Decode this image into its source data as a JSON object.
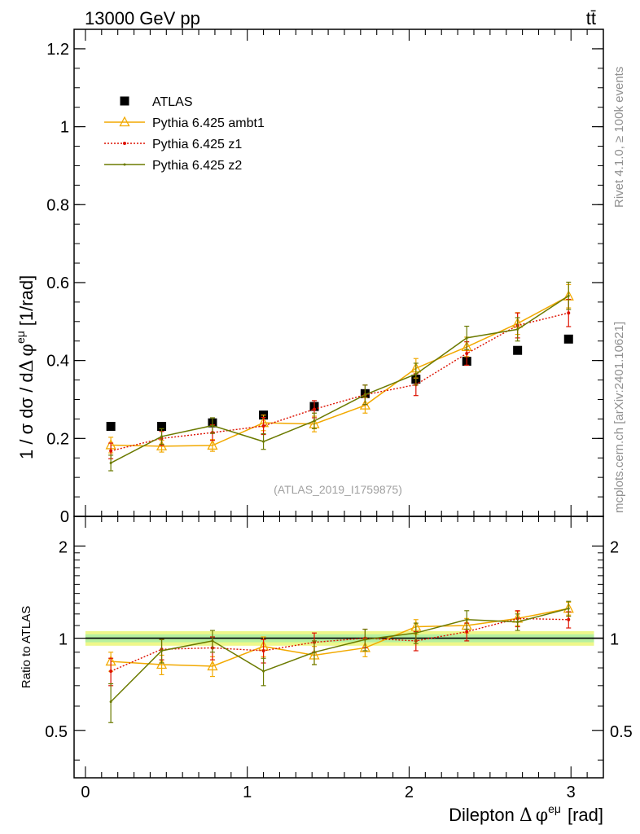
{
  "header": {
    "energy_label": "13000 GeV pp",
    "process_label": "tt̄",
    "ref_label": "(ATLAS_2019_I1759875)",
    "side_label_rivet": "Rivet 4.1.0, ≥ 100k events",
    "side_label_url": "mcplots.cern.ch [arXiv:2401.10621]"
  },
  "colors": {
    "atlas": "#000000",
    "ambt1": "#f2a900",
    "z1": "#dd1100",
    "z2": "#6b7a00",
    "band_outer": "#eef78a",
    "band_inner": "#b6f0a0",
    "ref_line": "#0a7a0a"
  },
  "chart_data": [
    {
      "type": "scatter",
      "panel": "main",
      "ylabel_parts": {
        "a": "1 / σ  dσ / d",
        "delta": "Δ",
        "phi": "φ",
        "sup": "eμ",
        "unit": "[1/rad]"
      },
      "ylim": [
        0,
        1.25
      ],
      "xlim": [
        -0.07,
        3.2
      ],
      "yticks": [
        {
          "v": 0,
          "label": "0"
        },
        {
          "v": 0.2,
          "label": "0.2"
        },
        {
          "v": 0.4,
          "label": "0.4"
        },
        {
          "v": 0.6,
          "label": "0.6"
        },
        {
          "v": 0.8,
          "label": "0.8"
        },
        {
          "v": 1.0,
          "label": "1"
        },
        {
          "v": 1.2,
          "label": "1.2"
        }
      ],
      "x": [
        0.157,
        0.471,
        0.785,
        1.1,
        1.414,
        1.728,
        2.042,
        2.356,
        2.67,
        2.985
      ],
      "legend": [
        {
          "key": "atlas",
          "label": "ATLAS"
        },
        {
          "key": "ambt1",
          "label": "Pythia 6.425 ambt1"
        },
        {
          "key": "z1",
          "label": "Pythia 6.425 z1"
        },
        {
          "key": "z2",
          "label": "Pythia 6.425 z2"
        }
      ],
      "series": [
        {
          "key": "atlas",
          "name": "ATLAS",
          "style": "square",
          "values": [
            0.231,
            0.231,
            0.24,
            0.26,
            0.282,
            0.315,
            0.352,
            0.398,
            0.426,
            0.455
          ]
        },
        {
          "key": "ambt1",
          "name": "Pythia 6.425 ambt1",
          "style": "triangle",
          "values": [
            0.183,
            0.18,
            0.182,
            0.24,
            0.237,
            0.285,
            0.38,
            0.435,
            0.495,
            0.565
          ],
          "errors": [
            0.02,
            0.015,
            0.015,
            0.02,
            0.02,
            0.02,
            0.025,
            0.025,
            0.028,
            0.03
          ]
        },
        {
          "key": "z1",
          "name": "Pythia 6.425 z1",
          "style": "dot",
          "values": [
            0.168,
            0.2,
            0.215,
            0.232,
            0.275,
            0.312,
            0.338,
            0.418,
            0.49,
            0.522
          ],
          "errors": [
            0.02,
            0.018,
            0.02,
            0.022,
            0.022,
            0.025,
            0.028,
            0.03,
            0.032,
            0.035
          ]
        },
        {
          "key": "z2",
          "name": "Pythia 6.425 z2",
          "style": "line",
          "values": [
            0.137,
            0.205,
            0.233,
            0.192,
            0.245,
            0.312,
            0.365,
            0.458,
            0.48,
            0.566
          ],
          "errors": [
            0.02,
            0.02,
            0.02,
            0.02,
            0.02,
            0.025,
            0.028,
            0.03,
            0.03,
            0.035
          ]
        }
      ]
    },
    {
      "type": "line",
      "panel": "ratio",
      "ylabel": "Ratio to ATLAS",
      "xlabel_parts": {
        "a": "Dilepton",
        "delta": "Δ",
        "phi": "φ",
        "sup": "eμ",
        "unit": "[rad]"
      },
      "ylim": [
        0.35,
        2.5
      ],
      "scale": "log",
      "xlim": [
        -0.07,
        3.2
      ],
      "yticks": [
        {
          "v": 0.5,
          "label": "0.5"
        },
        {
          "v": 1.0,
          "label": "1"
        },
        {
          "v": 2.0,
          "label": "2"
        }
      ],
      "xticks": [
        {
          "v": 0,
          "label": "0"
        },
        {
          "v": 1,
          "label": "1"
        },
        {
          "v": 2,
          "label": "2"
        },
        {
          "v": 3,
          "label": "3"
        }
      ],
      "x": [
        0.157,
        0.471,
        0.785,
        1.1,
        1.414,
        1.728,
        2.042,
        2.356,
        2.67,
        2.985
      ],
      "band": {
        "outer": 0.055,
        "inner": 0.03
      },
      "series": [
        {
          "key": "ambt1",
          "name": "Pythia 6.425 ambt1",
          "style": "triangle",
          "values": [
            0.84,
            0.82,
            0.81,
            0.94,
            0.88,
            0.93,
            1.09,
            1.1,
            1.16,
            1.25
          ],
          "errors": [
            0.06,
            0.06,
            0.06,
            0.07,
            0.06,
            0.06,
            0.06,
            0.06,
            0.06,
            0.06
          ]
        },
        {
          "key": "z1",
          "name": "Pythia 6.425 z1",
          "style": "dot",
          "values": [
            0.78,
            0.92,
            0.93,
            0.91,
            0.97,
            1.0,
            0.98,
            1.05,
            1.16,
            1.15
          ],
          "errors": [
            0.08,
            0.07,
            0.08,
            0.08,
            0.07,
            0.07,
            0.07,
            0.07,
            0.07,
            0.07
          ]
        },
        {
          "key": "z2",
          "name": "Pythia 6.425 z2",
          "style": "line",
          "values": [
            0.62,
            0.91,
            0.98,
            0.78,
            0.9,
            0.99,
            1.04,
            1.15,
            1.13,
            1.25
          ],
          "errors": [
            0.09,
            0.08,
            0.08,
            0.08,
            0.08,
            0.08,
            0.08,
            0.08,
            0.07,
            0.07
          ]
        }
      ]
    }
  ]
}
